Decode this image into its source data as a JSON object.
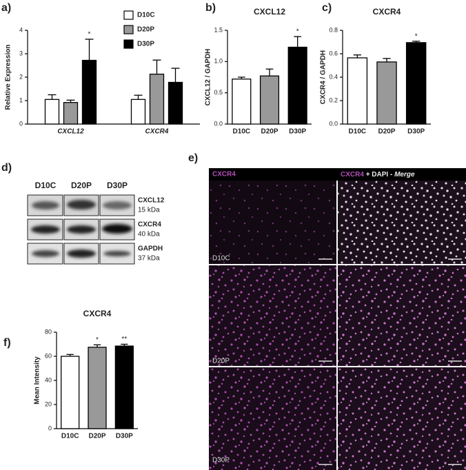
{
  "chart_data": [
    {
      "type": "grouped_bar",
      "label": "a)",
      "y_label": "Relative Expression",
      "categories": [
        "CXCL12",
        "CXCR4"
      ],
      "series": [
        {
          "name": "D10C",
          "color": "#ffffff",
          "values": [
            1.05,
            1.05
          ],
          "errors": [
            0.2,
            0.18
          ],
          "significance": [
            null,
            null
          ]
        },
        {
          "name": "D20P",
          "color": "#999999",
          "values": [
            0.92,
            2.13
          ],
          "errors": [
            0.1,
            0.6
          ],
          "significance": [
            null,
            null
          ]
        },
        {
          "name": "D30P",
          "color": "#000000",
          "values": [
            2.72,
            1.78
          ],
          "errors": [
            0.9,
            0.6
          ],
          "significance": [
            "*",
            null
          ]
        }
      ],
      "ylim": [
        0,
        4
      ],
      "yticks": [
        0,
        1,
        2,
        3,
        4
      ]
    },
    {
      "type": "bar",
      "label": "b)",
      "title": "CXCL12",
      "y_label": "CXCL12 / GAPDH",
      "categories": [
        "D10C",
        "D20P",
        "D30P"
      ],
      "colors": [
        "#ffffff",
        "#999999",
        "#000000"
      ],
      "values": [
        0.72,
        0.77,
        1.23
      ],
      "errors": [
        0.03,
        0.11,
        0.17
      ],
      "significance": [
        null,
        null,
        "*"
      ],
      "ylim": [
        0,
        1.5
      ],
      "yticks": [
        {
          "value": 0,
          "label": "0.0"
        },
        0.5,
        {
          "value": 1,
          "label": "1.0"
        },
        1.5
      ]
    },
    {
      "type": "bar",
      "label": "c)",
      "title": "CXCR4",
      "y_label": "CXCR4 / GAPDH",
      "categories": [
        "D10C",
        "D20P",
        "D30P"
      ],
      "colors": [
        "#ffffff",
        "#999999",
        "#000000"
      ],
      "values": [
        0.565,
        0.53,
        0.695
      ],
      "errors": [
        0.025,
        0.03,
        0.012
      ],
      "significance": [
        null,
        null,
        "*"
      ],
      "ylim": [
        0,
        0.8
      ],
      "yticks": [
        {
          "value": 0,
          "label": "0.0"
        },
        0.2,
        0.4,
        0.6,
        0.8
      ]
    },
    {
      "type": "bar",
      "label": "f)",
      "title": "CXCR4",
      "y_label": "Mean Intensity",
      "categories": [
        "D10C",
        "D20P",
        "D30P"
      ],
      "colors": [
        "#ffffff",
        "#999999",
        "#000000"
      ],
      "values": [
        60,
        67.5,
        68.5
      ],
      "errors": [
        1.5,
        2,
        1.5
      ],
      "significance": [
        null,
        "*",
        "**"
      ],
      "ylim": [
        0,
        80
      ],
      "yticks": [
        0,
        20,
        40,
        60,
        80
      ]
    }
  ],
  "western_blot": {
    "label": "d)",
    "columns": [
      "D10C",
      "D20P",
      "D30P"
    ],
    "rows": [
      {
        "protein": "CXCL12",
        "size": "15 kDa"
      },
      {
        "protein": "CXCR4",
        "size": "40 kDa"
      },
      {
        "protein": "GAPDH",
        "size": "37 kDa"
      }
    ]
  },
  "microscopy": {
    "label": "e)",
    "header_left": "CXCR4",
    "header_right": [
      "CXCR4",
      "+ DAPI -",
      "Merge"
    ],
    "rows": [
      "D10C",
      "D20P",
      "D30P"
    ]
  }
}
